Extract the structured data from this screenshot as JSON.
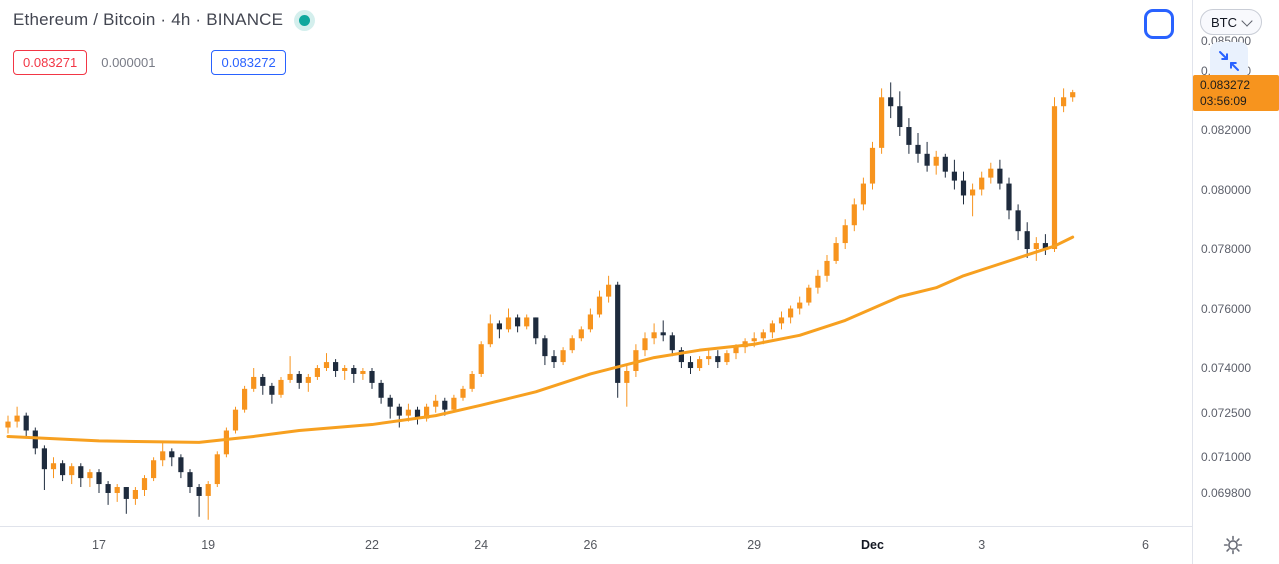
{
  "header": {
    "title": "Ethereum / Bitcoin · 4h · BINANCE"
  },
  "price_row": {
    "bid": "0.083271",
    "spread": "0.000001",
    "ask": "0.083272"
  },
  "right_axis": {
    "currency": "BTC"
  },
  "colors": {
    "accent_blue": "#2962ff",
    "bid_red": "#f23645",
    "up_orange": "#f7941e",
    "down_navy": "#1e2b3d",
    "ma_orange": "#f7a020",
    "tag_bg": "#f7941e",
    "tag_text": "#1c1c1c",
    "axis_text": "#5d606b",
    "title_text": "#434651",
    "divider": "#e0e3eb",
    "status_teal": "#10a79d",
    "background": "#ffffff"
  },
  "chart_data": {
    "type": "candlestick",
    "title": "Ethereum / Bitcoin",
    "interval": "4h",
    "exchange": "BINANCE",
    "last_price": 0.083272,
    "last_price_label": "0.083272",
    "countdown": "03:56:09",
    "up_color": "#f7941e",
    "down_color": "#1e2b3d",
    "price_range": {
      "top": 0.08637,
      "bottom": 0.06869
    },
    "price_axis_labels": [
      {
        "price": 0.085,
        "label": "0.085000"
      },
      {
        "price": 0.084,
        "label": "0.084000"
      },
      {
        "price": 0.082,
        "label": "0.082000"
      },
      {
        "price": 0.08,
        "label": "0.080000"
      },
      {
        "price": 0.078,
        "label": "0.078000"
      },
      {
        "price": 0.076,
        "label": "0.076000"
      },
      {
        "price": 0.074,
        "label": "0.074000"
      },
      {
        "price": 0.0725,
        "label": "0.072500"
      },
      {
        "price": 0.071,
        "label": "0.071000"
      },
      {
        "price": 0.0698,
        "label": "0.069800"
      }
    ],
    "time_labels": [
      {
        "label": "17",
        "i": 10
      },
      {
        "label": "19",
        "i": 22
      },
      {
        "label": "22",
        "i": 40
      },
      {
        "label": "24",
        "i": 52
      },
      {
        "label": "26",
        "i": 64
      },
      {
        "label": "29",
        "i": 82
      },
      {
        "label": "Dec",
        "i": 95,
        "bold": true
      },
      {
        "label": "3",
        "i": 107
      },
      {
        "label": "6",
        "i": 125
      }
    ],
    "ma": {
      "name": "MA",
      "color": "#f7a020",
      "points": [
        [
          0,
          0.0717
        ],
        [
          10,
          0.07155
        ],
        [
          21,
          0.0715
        ],
        [
          27,
          0.0717
        ],
        [
          32,
          0.0719
        ],
        [
          40,
          0.0721
        ],
        [
          47,
          0.0724
        ],
        [
          52,
          0.07275
        ],
        [
          58,
          0.0732
        ],
        [
          64,
          0.0738
        ],
        [
          71,
          0.07435
        ],
        [
          76,
          0.0746
        ],
        [
          82,
          0.0748
        ],
        [
          87,
          0.0751
        ],
        [
          92,
          0.0756
        ],
        [
          95,
          0.076
        ],
        [
          98,
          0.0764
        ],
        [
          102,
          0.0767
        ],
        [
          105,
          0.0771
        ],
        [
          108,
          0.0774
        ],
        [
          112,
          0.0778
        ],
        [
          115,
          0.0781
        ],
        [
          117,
          0.0784
        ]
      ]
    },
    "candles": [
      [
        0.072,
        0.0724,
        0.0718,
        0.0722
      ],
      [
        0.0722,
        0.0727,
        0.072,
        0.0724
      ],
      [
        0.0724,
        0.0725,
        0.0717,
        0.0719
      ],
      [
        0.0719,
        0.072,
        0.0711,
        0.0713
      ],
      [
        0.0713,
        0.0714,
        0.0699,
        0.0706
      ],
      [
        0.0706,
        0.071,
        0.0703,
        0.0708
      ],
      [
        0.0708,
        0.0709,
        0.0702,
        0.0704
      ],
      [
        0.0704,
        0.0708,
        0.0701,
        0.0707
      ],
      [
        0.0707,
        0.0708,
        0.07,
        0.0703
      ],
      [
        0.0703,
        0.0706,
        0.07,
        0.0705
      ],
      [
        0.0705,
        0.0706,
        0.0698,
        0.0701
      ],
      [
        0.0701,
        0.0702,
        0.0694,
        0.0698
      ],
      [
        0.0698,
        0.0701,
        0.0695,
        0.07
      ],
      [
        0.07,
        0.07,
        0.0691,
        0.0696
      ],
      [
        0.0696,
        0.07,
        0.0694,
        0.0699
      ],
      [
        0.0699,
        0.0704,
        0.0697,
        0.0703
      ],
      [
        0.0703,
        0.071,
        0.0702,
        0.0709
      ],
      [
        0.0709,
        0.0715,
        0.0707,
        0.0712
      ],
      [
        0.0712,
        0.0713,
        0.0707,
        0.071
      ],
      [
        0.071,
        0.0711,
        0.0703,
        0.0705
      ],
      [
        0.0705,
        0.0706,
        0.0698,
        0.07
      ],
      [
        0.07,
        0.0701,
        0.069,
        0.0697
      ],
      [
        0.0697,
        0.0702,
        0.0689,
        0.0701
      ],
      [
        0.0701,
        0.0712,
        0.07,
        0.0711
      ],
      [
        0.0711,
        0.072,
        0.071,
        0.0719
      ],
      [
        0.0719,
        0.0727,
        0.0718,
        0.0726
      ],
      [
        0.0726,
        0.0734,
        0.0725,
        0.0733
      ],
      [
        0.0733,
        0.074,
        0.0732,
        0.0737
      ],
      [
        0.0737,
        0.0738,
        0.0731,
        0.0734
      ],
      [
        0.0734,
        0.0735,
        0.0728,
        0.0731
      ],
      [
        0.0731,
        0.0737,
        0.073,
        0.0736
      ],
      [
        0.0736,
        0.0744,
        0.0735,
        0.0738
      ],
      [
        0.0738,
        0.0739,
        0.0733,
        0.0735
      ],
      [
        0.0735,
        0.0738,
        0.0732,
        0.0737
      ],
      [
        0.0737,
        0.0741,
        0.0736,
        0.074
      ],
      [
        0.074,
        0.0745,
        0.0739,
        0.0742
      ],
      [
        0.0742,
        0.0743,
        0.0737,
        0.0739
      ],
      [
        0.0739,
        0.0741,
        0.0736,
        0.074
      ],
      [
        0.074,
        0.0741,
        0.0735,
        0.0738
      ],
      [
        0.0738,
        0.074,
        0.0736,
        0.0739
      ],
      [
        0.0739,
        0.074,
        0.0733,
        0.0735
      ],
      [
        0.0735,
        0.0736,
        0.0728,
        0.073
      ],
      [
        0.073,
        0.0731,
        0.0723,
        0.0727
      ],
      [
        0.0727,
        0.0728,
        0.072,
        0.0724
      ],
      [
        0.0724,
        0.0728,
        0.0722,
        0.0726
      ],
      [
        0.0726,
        0.0727,
        0.0721,
        0.0723
      ],
      [
        0.0723,
        0.0728,
        0.0722,
        0.0727
      ],
      [
        0.0727,
        0.0731,
        0.0725,
        0.0729
      ],
      [
        0.0729,
        0.073,
        0.0724,
        0.0726
      ],
      [
        0.0726,
        0.0731,
        0.0725,
        0.073
      ],
      [
        0.073,
        0.0734,
        0.0729,
        0.0733
      ],
      [
        0.0733,
        0.0739,
        0.0732,
        0.0738
      ],
      [
        0.0738,
        0.0749,
        0.0737,
        0.0748
      ],
      [
        0.0748,
        0.0758,
        0.0747,
        0.0755
      ],
      [
        0.0755,
        0.0756,
        0.075,
        0.0753
      ],
      [
        0.0753,
        0.076,
        0.0752,
        0.0757
      ],
      [
        0.0757,
        0.0758,
        0.0752,
        0.0754
      ],
      [
        0.0754,
        0.0758,
        0.0753,
        0.0757
      ],
      [
        0.0757,
        0.0757,
        0.0748,
        0.075
      ],
      [
        0.075,
        0.0751,
        0.0741,
        0.0744
      ],
      [
        0.0744,
        0.0746,
        0.074,
        0.0742
      ],
      [
        0.0742,
        0.0747,
        0.0741,
        0.0746
      ],
      [
        0.0746,
        0.0751,
        0.0745,
        0.075
      ],
      [
        0.075,
        0.0754,
        0.0749,
        0.0753
      ],
      [
        0.0753,
        0.076,
        0.0752,
        0.0758
      ],
      [
        0.0758,
        0.0766,
        0.0757,
        0.0764
      ],
      [
        0.0764,
        0.0771,
        0.0762,
        0.0768
      ],
      [
        0.0768,
        0.0769,
        0.073,
        0.0735
      ],
      [
        0.0735,
        0.0741,
        0.0727,
        0.0739
      ],
      [
        0.0739,
        0.0748,
        0.0737,
        0.0746
      ],
      [
        0.0746,
        0.0752,
        0.0744,
        0.075
      ],
      [
        0.075,
        0.0755,
        0.0748,
        0.0752
      ],
      [
        0.0752,
        0.0756,
        0.0749,
        0.0751
      ],
      [
        0.0751,
        0.0752,
        0.0744,
        0.0746
      ],
      [
        0.0746,
        0.0747,
        0.074,
        0.0742
      ],
      [
        0.0742,
        0.0744,
        0.0738,
        0.074
      ],
      [
        0.074,
        0.0744,
        0.0739,
        0.0743
      ],
      [
        0.0743,
        0.0746,
        0.0741,
        0.0744
      ],
      [
        0.0744,
        0.0746,
        0.074,
        0.0742
      ],
      [
        0.0742,
        0.0746,
        0.0741,
        0.0745
      ],
      [
        0.0745,
        0.0748,
        0.0743,
        0.0747
      ],
      [
        0.0747,
        0.075,
        0.0745,
        0.0749
      ],
      [
        0.0749,
        0.0752,
        0.0747,
        0.075
      ],
      [
        0.075,
        0.0753,
        0.0748,
        0.0752
      ],
      [
        0.0752,
        0.0756,
        0.075,
        0.0755
      ],
      [
        0.0755,
        0.0759,
        0.0753,
        0.0757
      ],
      [
        0.0757,
        0.0761,
        0.0755,
        0.076
      ],
      [
        0.076,
        0.0764,
        0.0758,
        0.0762
      ],
      [
        0.0762,
        0.0768,
        0.0761,
        0.0767
      ],
      [
        0.0767,
        0.0773,
        0.0765,
        0.0771
      ],
      [
        0.0771,
        0.0778,
        0.0769,
        0.0776
      ],
      [
        0.0776,
        0.0784,
        0.0775,
        0.0782
      ],
      [
        0.0782,
        0.079,
        0.078,
        0.0788
      ],
      [
        0.0788,
        0.0797,
        0.0786,
        0.0795
      ],
      [
        0.0795,
        0.0804,
        0.0793,
        0.0802
      ],
      [
        0.0802,
        0.0816,
        0.08,
        0.0814
      ],
      [
        0.0814,
        0.0834,
        0.0812,
        0.0831
      ],
      [
        0.0831,
        0.0836,
        0.0824,
        0.0828
      ],
      [
        0.0828,
        0.0833,
        0.0818,
        0.0821
      ],
      [
        0.0821,
        0.0824,
        0.0812,
        0.0815
      ],
      [
        0.0815,
        0.0819,
        0.0809,
        0.0812
      ],
      [
        0.0812,
        0.0816,
        0.0806,
        0.0808
      ],
      [
        0.0808,
        0.0813,
        0.0805,
        0.0811
      ],
      [
        0.0811,
        0.0812,
        0.0804,
        0.0806
      ],
      [
        0.0806,
        0.081,
        0.08,
        0.0803
      ],
      [
        0.0803,
        0.0806,
        0.0795,
        0.0798
      ],
      [
        0.0798,
        0.0802,
        0.0791,
        0.08
      ],
      [
        0.08,
        0.0806,
        0.0798,
        0.0804
      ],
      [
        0.0804,
        0.0809,
        0.0802,
        0.0807
      ],
      [
        0.0807,
        0.081,
        0.08,
        0.0802
      ],
      [
        0.0802,
        0.0804,
        0.079,
        0.0793
      ],
      [
        0.0793,
        0.0795,
        0.0783,
        0.0786
      ],
      [
        0.0786,
        0.0789,
        0.0777,
        0.078
      ],
      [
        0.078,
        0.0784,
        0.0776,
        0.0782
      ],
      [
        0.0782,
        0.0785,
        0.0778,
        0.078
      ],
      [
        0.078,
        0.0831,
        0.0779,
        0.0828
      ],
      [
        0.0828,
        0.0834,
        0.0826,
        0.0831
      ],
      [
        0.0831,
        0.08335,
        0.08295,
        0.083272
      ]
    ]
  }
}
